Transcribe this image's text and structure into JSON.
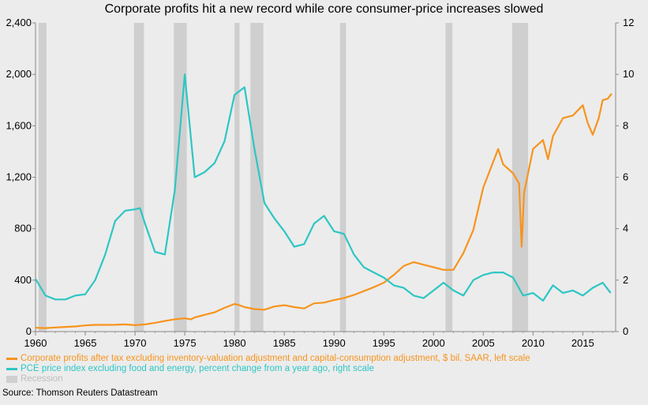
{
  "chart_data": {
    "type": "line",
    "title": "Corporate profits hit a new record while core consumer-price increases slowed",
    "x_ticks": [
      "1960",
      "1965",
      "1970",
      "1975",
      "1980",
      "1985",
      "1990",
      "1995",
      "2000",
      "2005",
      "2010",
      "2015"
    ],
    "x_range": [
      1960,
      2018.3
    ],
    "y_left": {
      "range": [
        0,
        2400
      ],
      "ticks": [
        "0",
        "400",
        "800",
        "1,200",
        "1,600",
        "2,000",
        "2,400"
      ]
    },
    "y_right": {
      "range": [
        0,
        12
      ],
      "ticks": [
        "0",
        "2",
        "4",
        "6",
        "8",
        "10",
        "12"
      ]
    },
    "grid": false,
    "legend_position": "bottom-left",
    "recessions": [
      [
        1960.3,
        1961.1
      ],
      [
        1969.9,
        1970.9
      ],
      [
        1973.9,
        1975.2
      ],
      [
        1980.0,
        1980.5
      ],
      [
        1981.6,
        1982.9
      ],
      [
        1990.6,
        1991.2
      ],
      [
        2001.2,
        2001.9
      ],
      [
        2007.9,
        2009.5
      ]
    ],
    "series": [
      {
        "name": "Corporate profits after tax excluding inventory-valuation adjustment and capital-consumption adjustment, $ bil. SAAR, left scale",
        "axis": "left",
        "color": "#f7941d",
        "points": [
          [
            1960,
            30
          ],
          [
            1961,
            27
          ],
          [
            1962,
            32
          ],
          [
            1963,
            36
          ],
          [
            1964,
            40
          ],
          [
            1965,
            48
          ],
          [
            1966,
            52
          ],
          [
            1967,
            52
          ],
          [
            1968,
            53
          ],
          [
            1969,
            56
          ],
          [
            1970,
            50
          ],
          [
            1971,
            56
          ],
          [
            1972,
            68
          ],
          [
            1973,
            82
          ],
          [
            1974,
            96
          ],
          [
            1975,
            103
          ],
          [
            1975.6,
            95
          ],
          [
            1976,
            110
          ],
          [
            1977,
            130
          ],
          [
            1978,
            150
          ],
          [
            1979,
            185
          ],
          [
            1980,
            215
          ],
          [
            1980.5,
            205
          ],
          [
            1981,
            190
          ],
          [
            1982,
            175
          ],
          [
            1983,
            170
          ],
          [
            1984,
            195
          ],
          [
            1985,
            205
          ],
          [
            1986,
            190
          ],
          [
            1987,
            180
          ],
          [
            1988,
            220
          ],
          [
            1989,
            225
          ],
          [
            1990,
            245
          ],
          [
            1991,
            260
          ],
          [
            1992,
            285
          ],
          [
            1993,
            315
          ],
          [
            1994,
            345
          ],
          [
            1995,
            380
          ],
          [
            1996,
            440
          ],
          [
            1997,
            510
          ],
          [
            1998,
            540
          ],
          [
            1999,
            520
          ],
          [
            2000,
            500
          ],
          [
            2001,
            480
          ],
          [
            2002,
            480
          ],
          [
            2003,
            610
          ],
          [
            2004,
            790
          ],
          [
            2005,
            1120
          ],
          [
            2006,
            1320
          ],
          [
            2006.5,
            1420
          ],
          [
            2007,
            1300
          ],
          [
            2008,
            1230
          ],
          [
            2008.6,
            1150
          ],
          [
            2008.85,
            660
          ],
          [
            2009.1,
            1080
          ],
          [
            2010,
            1420
          ],
          [
            2011,
            1490
          ],
          [
            2011.5,
            1340
          ],
          [
            2012,
            1520
          ],
          [
            2013,
            1660
          ],
          [
            2014,
            1680
          ],
          [
            2015,
            1760
          ],
          [
            2015.5,
            1620
          ],
          [
            2016,
            1530
          ],
          [
            2016.6,
            1660
          ],
          [
            2017,
            1800
          ],
          [
            2017.5,
            1810
          ],
          [
            2017.9,
            1850
          ]
        ]
      },
      {
        "name": "PCE price index excluding food and energy, percent change from a year ago, right scale",
        "axis": "right",
        "color": "#2ec6c4",
        "points": [
          [
            1960,
            2.05
          ],
          [
            1961,
            1.4
          ],
          [
            1962,
            1.25
          ],
          [
            1963,
            1.25
          ],
          [
            1964,
            1.4
          ],
          [
            1965,
            1.45
          ],
          [
            1966,
            2.0
          ],
          [
            1967,
            3.0
          ],
          [
            1968,
            4.3
          ],
          [
            1969,
            4.7
          ],
          [
            1970,
            4.75
          ],
          [
            1970.5,
            4.8
          ],
          [
            1971,
            4.2
          ],
          [
            1972,
            3.1
          ],
          [
            1973,
            3.0
          ],
          [
            1974,
            5.5
          ],
          [
            1975,
            10.0
          ],
          [
            1976,
            6.0
          ],
          [
            1977,
            6.2
          ],
          [
            1978,
            6.55
          ],
          [
            1979,
            7.4
          ],
          [
            1980,
            9.2
          ],
          [
            1981,
            9.5
          ],
          [
            1982,
            7.1
          ],
          [
            1983,
            5.0
          ],
          [
            1984,
            4.4
          ],
          [
            1985,
            3.9
          ],
          [
            1986,
            3.3
          ],
          [
            1987,
            3.4
          ],
          [
            1988,
            4.2
          ],
          [
            1989,
            4.5
          ],
          [
            1990,
            3.9
          ],
          [
            1991,
            3.8
          ],
          [
            1992,
            3.0
          ],
          [
            1993,
            2.5
          ],
          [
            1994,
            2.3
          ],
          [
            1995,
            2.1
          ],
          [
            1996,
            1.8
          ],
          [
            1997,
            1.7
          ],
          [
            1998,
            1.4
          ],
          [
            1999,
            1.3
          ],
          [
            2000,
            1.6
          ],
          [
            2001,
            1.9
          ],
          [
            2002,
            1.6
          ],
          [
            2003,
            1.4
          ],
          [
            2004,
            2.0
          ],
          [
            2005,
            2.2
          ],
          [
            2006,
            2.3
          ],
          [
            2007,
            2.3
          ],
          [
            2008,
            2.1
          ],
          [
            2009,
            1.4
          ],
          [
            2010,
            1.5
          ],
          [
            2011,
            1.2
          ],
          [
            2012,
            1.8
          ],
          [
            2013,
            1.5
          ],
          [
            2014,
            1.6
          ],
          [
            2015,
            1.4
          ],
          [
            2016,
            1.7
          ],
          [
            2017,
            1.9
          ],
          [
            2017.8,
            1.5
          ]
        ]
      }
    ],
    "recession_label": "Recession"
  },
  "source": "Source: Thomson Reuters Datastream"
}
